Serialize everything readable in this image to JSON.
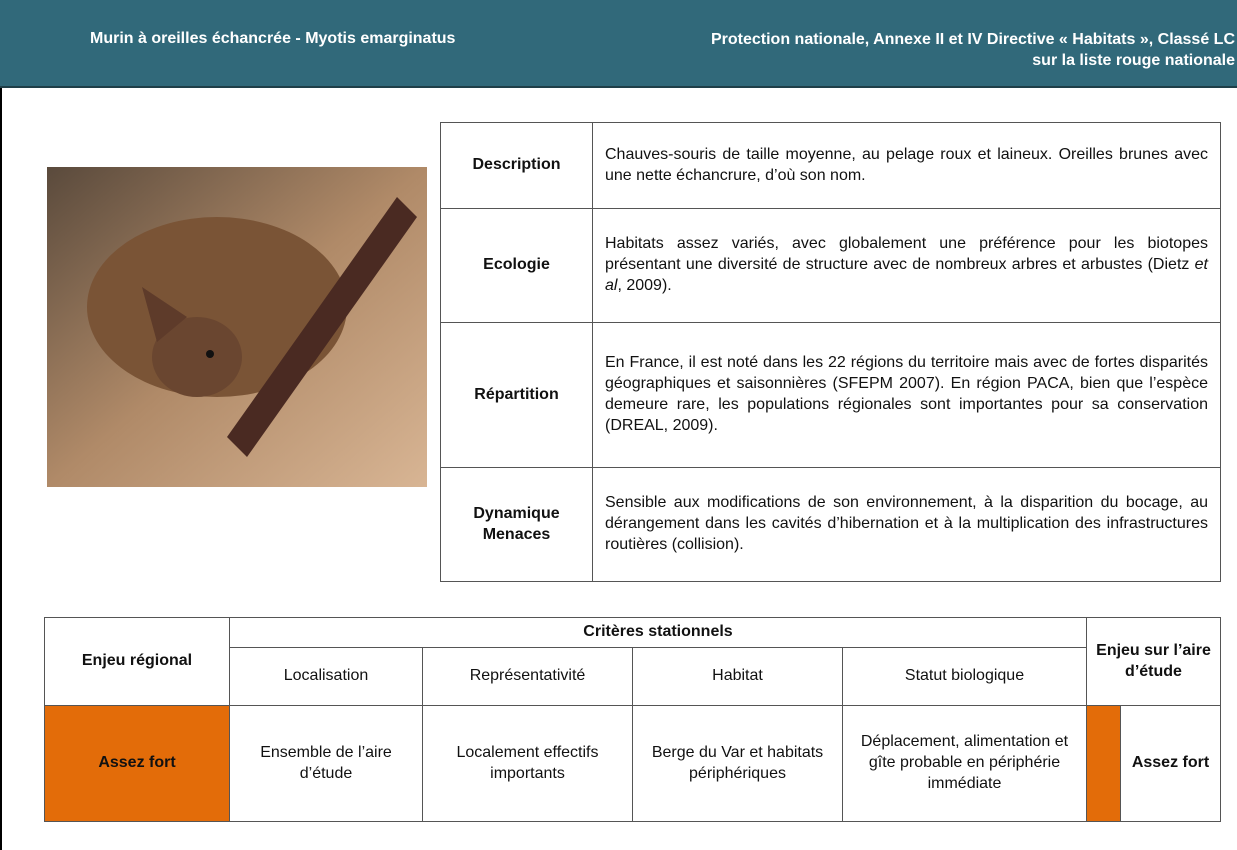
{
  "header": {
    "title": "Murin à oreilles échancrée - Myotis emarginatus",
    "status": [
      "Protection nationale, Annexe II et IV Directive « Habitats », Classé LC",
      "sur la liste rouge nationale"
    ]
  },
  "species_table": {
    "rows": [
      {
        "label": "Description",
        "text": "Chauves-souris de taille moyenne, au pelage roux et laineux. Oreilles brunes avec une nette échancrure, d’où son nom."
      },
      {
        "label": "Ecologie",
        "text": {
          "before": "Habitats assez variés, avec globalement une préférence pour les biotopes présentant une diversité de structure avec de nombreux arbres et arbustes (Dietz ",
          "italic": "et al",
          "after": ", 2009)."
        }
      },
      {
        "label": "Répartition",
        "text": "En France, il est noté dans les 22 régions du territoire mais avec de fortes disparités géographiques et saisonnières (SFEPM 2007). En région PACA, bien que l’espèce demeure rare, les populations régionales sont importantes pour sa conservation (DREAL, 2009)."
      },
      {
        "label": "Dynamique Menaces",
        "text": "Sensible aux modifications de son environnement, à la disparition du bocage, au dérangement dans les cavités d’hibernation et à la multiplication des infrastructures routières (collision)."
      }
    ]
  },
  "issue_table": {
    "headers": {
      "regional": "Enjeu régional",
      "criteria": "Critères stationnels",
      "study_area": "Enjeu sur l’aire d’étude",
      "columns": [
        "Localisation",
        "Représentativité",
        "Habitat",
        "Statut biologique"
      ]
    },
    "row": {
      "regional": "Assez fort",
      "cells": [
        "Ensemble de l’aire d’étude",
        "Localement effectifs importants",
        "Berge du Var et habitats périphériques",
        "Déplacement, alimentation et gîte probable en périphérie immédiate"
      ],
      "study_area": "Assez fort"
    }
  }
}
